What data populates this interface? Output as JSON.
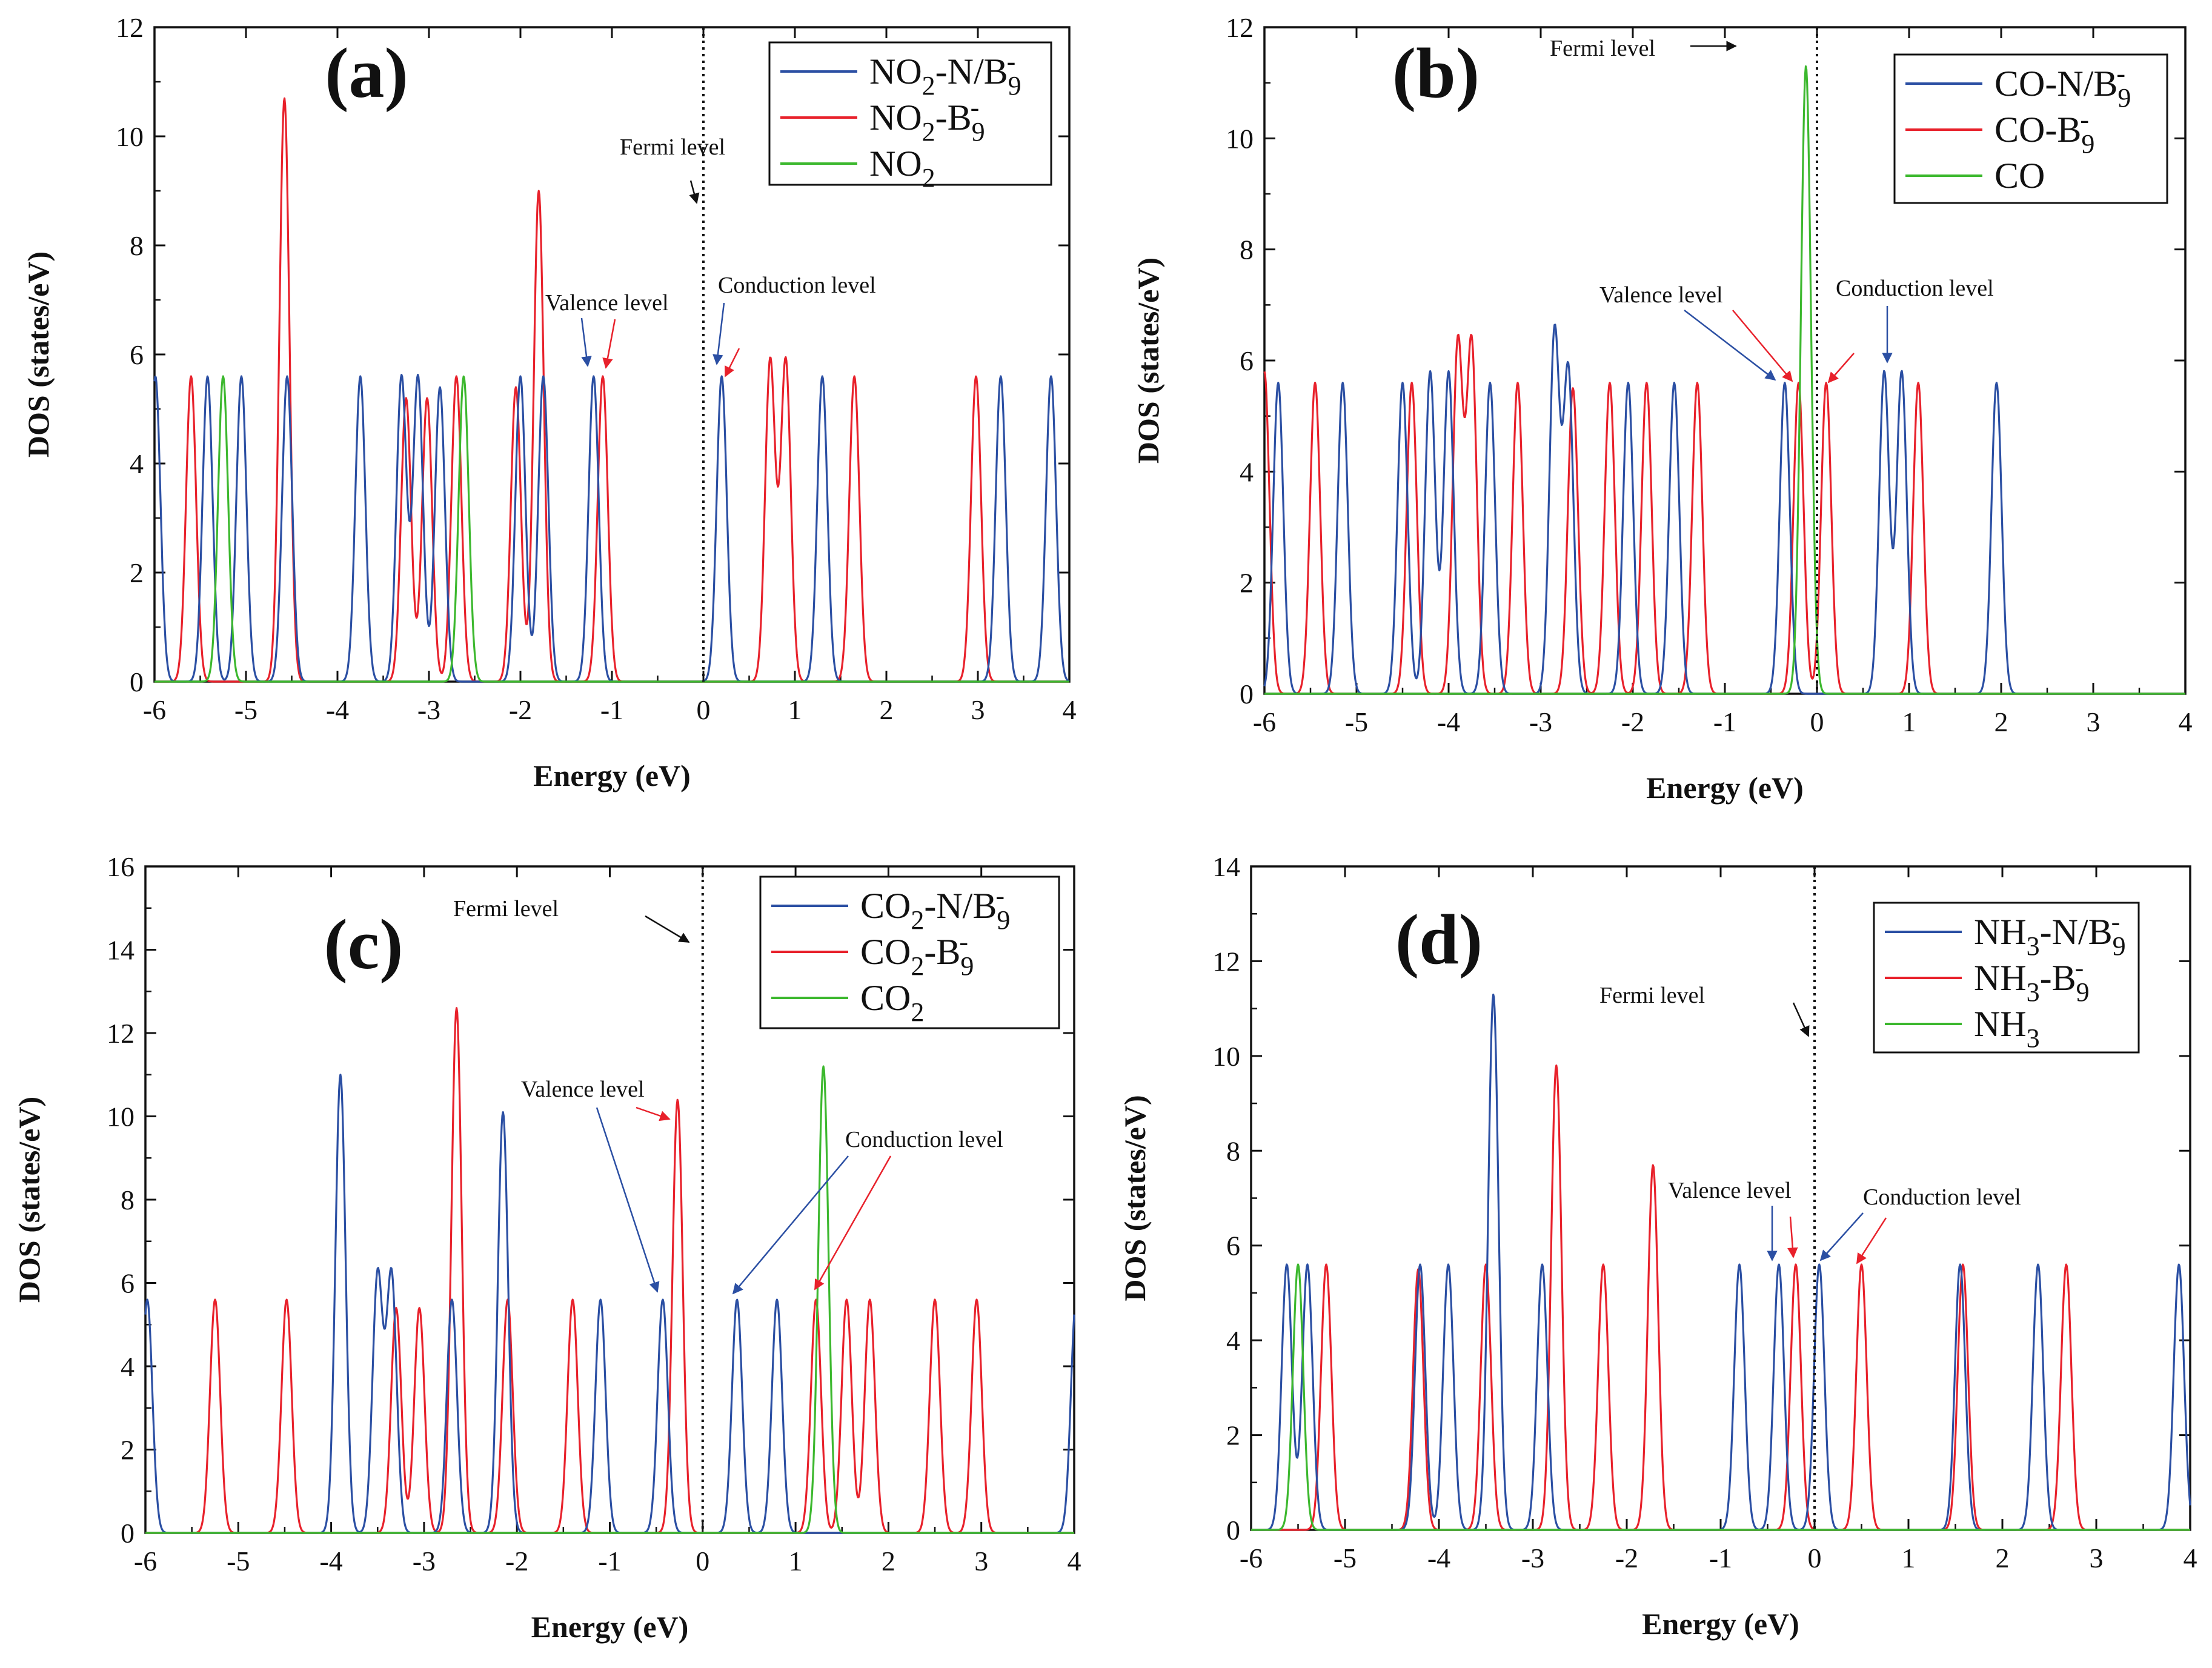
{
  "figure": {
    "panels": [
      "(a)",
      "(b)",
      "(c)",
      "(d)"
    ]
  },
  "chart_data": [
    {
      "type": "line",
      "panel_label": "(a)",
      "xlabel": "Energy (eV)",
      "ylabel": "DOS (states/eV)",
      "xlim": [
        -6,
        4
      ],
      "ylim": [
        0,
        12
      ],
      "xticks": [
        -6,
        -5,
        -4,
        -3,
        -2,
        -1,
        0,
        1,
        2,
        3,
        4
      ],
      "yticks": [
        0,
        2,
        4,
        6,
        8,
        10,
        12
      ],
      "xtick_labels": [
        "-6",
        "-5",
        "-4",
        "-3",
        "-2",
        "-1",
        "0",
        "1",
        "2",
        "3",
        "4"
      ],
      "ytick_labels": [
        "0",
        "2",
        "4",
        "6",
        "8",
        "10",
        "12"
      ],
      "sigma": 0.055,
      "fermi_level": 0,
      "legend": {
        "position": "top-right"
      },
      "series": [
        {
          "name": "NO₂-N/B₉⁻",
          "label_parts": [
            "NO",
            "2",
            "-N/B",
            "9",
            "-"
          ],
          "color": "#2b4fa3",
          "peaks": [
            [
              -5.99,
              5.6
            ],
            [
              -5.42,
              5.6
            ],
            [
              -5.05,
              5.6
            ],
            [
              -4.55,
              5.6
            ],
            [
              -3.75,
              5.6
            ],
            [
              -3.3,
              5.6
            ],
            [
              -3.12,
              5.6
            ],
            [
              -2.88,
              5.4
            ],
            [
              -2.0,
              5.6
            ],
            [
              -1.75,
              5.6
            ],
            [
              -1.2,
              5.6
            ],
            [
              0.2,
              5.6
            ],
            [
              1.3,
              5.6
            ],
            [
              3.25,
              5.6
            ],
            [
              3.8,
              5.6
            ]
          ]
        },
        {
          "name": "NO₂-B₉⁻",
          "label_parts": [
            "NO",
            "2",
            "-B",
            "9",
            "-"
          ],
          "color": "#e8212b",
          "peaks": [
            [
              -5.6,
              5.6
            ],
            [
              -4.58,
              10.7
            ],
            [
              -3.25,
              5.2
            ],
            [
              -3.02,
              5.2
            ],
            [
              -2.7,
              5.6
            ],
            [
              -2.05,
              5.4
            ],
            [
              -1.8,
              9.0
            ],
            [
              -1.1,
              5.6
            ],
            [
              0.73,
              5.9
            ],
            [
              0.9,
              5.9
            ],
            [
              1.65,
              5.6
            ],
            [
              2.98,
              5.6
            ]
          ]
        },
        {
          "name": "NO₂",
          "label_parts": [
            "NO",
            "2",
            "",
            "",
            ""
          ],
          "color": "#3cb82e",
          "peaks": [
            [
              -5.25,
              5.6
            ],
            [
              -2.62,
              5.6
            ]
          ]
        }
      ],
      "annotations": {
        "fermi": "Fermi level",
        "valence": "Valence level",
        "conduction": "Conduction level"
      }
    },
    {
      "type": "line",
      "panel_label": "(b)",
      "xlabel": "Energy (eV)",
      "ylabel": "DOS (states/eV)",
      "xlim": [
        -6,
        4
      ],
      "ylim": [
        0,
        12
      ],
      "xticks": [
        -6,
        -5,
        -4,
        -3,
        -2,
        -1,
        0,
        1,
        2,
        3,
        4
      ],
      "yticks": [
        0,
        2,
        4,
        6,
        8,
        10,
        12
      ],
      "xtick_labels": [
        "-6",
        "-5",
        "-4",
        "-3",
        "-2",
        "-1",
        "0",
        "1",
        "2",
        "3",
        "4"
      ],
      "ytick_labels": [
        "0",
        "2",
        "4",
        "6",
        "8",
        "10",
        "12"
      ],
      "sigma": 0.055,
      "fermi_level": 0,
      "legend": {
        "position": "top-right"
      },
      "series": [
        {
          "name": "CO-N/B₉⁻",
          "label_parts": [
            "CO-N/B",
            "",
            "",
            "9",
            "-"
          ],
          "color": "#2b4fa3",
          "peaks": [
            [
              -5.85,
              5.6
            ],
            [
              -5.15,
              5.6
            ],
            [
              -4.5,
              5.6
            ],
            [
              -4.2,
              5.8
            ],
            [
              -4.0,
              5.8
            ],
            [
              -3.55,
              5.6
            ],
            [
              -2.85,
              6.5
            ],
            [
              -2.7,
              5.8
            ],
            [
              -2.05,
              5.6
            ],
            [
              -1.55,
              5.6
            ],
            [
              -0.35,
              5.6
            ],
            [
              0.73,
              5.8
            ],
            [
              0.92,
              5.8
            ],
            [
              1.95,
              5.6
            ]
          ]
        },
        {
          "name": "CO-B₉⁻",
          "label_parts": [
            "CO-B",
            "",
            "",
            "9",
            "-"
          ],
          "color": "#e8212b",
          "peaks": [
            [
              -6.0,
              5.8
            ],
            [
              -5.45,
              5.6
            ],
            [
              -4.4,
              5.6
            ],
            [
              -3.9,
              6.3
            ],
            [
              -3.75,
              6.3
            ],
            [
              -3.25,
              5.6
            ],
            [
              -2.65,
              5.5
            ],
            [
              -2.25,
              5.6
            ],
            [
              -1.85,
              5.6
            ],
            [
              -1.3,
              5.6
            ],
            [
              -0.2,
              5.6
            ],
            [
              0.1,
              5.6
            ],
            [
              1.1,
              5.6
            ]
          ]
        },
        {
          "name": "CO",
          "label_parts": [
            "CO",
            "",
            "",
            "",
            ""
          ],
          "color": "#3cb82e",
          "peaks": [
            [
              -0.12,
              11.3
            ]
          ]
        }
      ],
      "annotations": {
        "fermi": "Fermi level",
        "valence": "Valence level",
        "conduction": "Conduction level"
      }
    },
    {
      "type": "line",
      "panel_label": "(c)",
      "xlabel": "Energy (eV)",
      "ylabel": "DOS (states/eV)",
      "xlim": [
        -6,
        4
      ],
      "ylim": [
        0,
        16
      ],
      "xticks": [
        -6,
        -5,
        -4,
        -3,
        -2,
        -1,
        0,
        1,
        2,
        3,
        4
      ],
      "yticks": [
        0,
        2,
        4,
        6,
        8,
        10,
        12,
        14,
        16
      ],
      "xtick_labels": [
        "-6",
        "-5",
        "-4",
        "-3",
        "-2",
        "-1",
        "0",
        "1",
        "2",
        "3",
        "4"
      ],
      "ytick_labels": [
        "0",
        "2",
        "4",
        "6",
        "8",
        "10",
        "12",
        "14",
        "16"
      ],
      "sigma": 0.055,
      "fermi_level": 0,
      "legend": {
        "position": "top-right"
      },
      "series": [
        {
          "name": "CO₂-N/B₉⁻",
          "label_parts": [
            "CO",
            "2",
            "-N/B",
            "9",
            "-"
          ],
          "color": "#2b4fa3",
          "peaks": [
            [
              -5.98,
              5.6
            ],
            [
              -3.9,
              11.0
            ],
            [
              -3.5,
              6.2
            ],
            [
              -3.35,
              6.2
            ],
            [
              -2.7,
              5.6
            ],
            [
              -2.15,
              10.1
            ],
            [
              -1.1,
              5.6
            ],
            [
              -0.43,
              5.6
            ],
            [
              0.37,
              5.6
            ],
            [
              0.8,
              5.6
            ],
            [
              4.02,
              5.6
            ]
          ]
        },
        {
          "name": "CO₂-B₉⁻",
          "label_parts": [
            "CO",
            "2",
            "-B",
            "9",
            "-"
          ],
          "color": "#e8212b",
          "peaks": [
            [
              -5.25,
              5.6
            ],
            [
              -4.48,
              5.6
            ],
            [
              -3.3,
              5.4
            ],
            [
              -3.05,
              5.4
            ],
            [
              -2.65,
              12.6
            ],
            [
              -2.1,
              5.6
            ],
            [
              -1.4,
              5.6
            ],
            [
              -0.27,
              10.4
            ],
            [
              1.22,
              5.6
            ],
            [
              1.55,
              5.6
            ],
            [
              1.8,
              5.6
            ],
            [
              2.5,
              5.6
            ],
            [
              2.95,
              5.6
            ]
          ]
        },
        {
          "name": "CO₂",
          "label_parts": [
            "CO",
            "2",
            "",
            "",
            ""
          ],
          "color": "#3cb82e",
          "peaks": [
            [
              1.3,
              11.2
            ]
          ]
        }
      ],
      "annotations": {
        "fermi": "Fermi level",
        "valence": "Valence level",
        "conduction": "Conduction level"
      }
    },
    {
      "type": "line",
      "panel_label": "(d)",
      "xlabel": "Energy (eV)",
      "ylabel": "DOS (states/eV)",
      "xlim": [
        -6,
        4
      ],
      "ylim": [
        0,
        14
      ],
      "xticks": [
        -6,
        -5,
        -4,
        -3,
        -2,
        -1,
        0,
        1,
        2,
        3,
        4
      ],
      "yticks": [
        0,
        2,
        4,
        6,
        8,
        10,
        12,
        14
      ],
      "xtick_labels": [
        "-6",
        "-5",
        "-4",
        "-3",
        "-2",
        "-1",
        "0",
        "1",
        "2",
        "3",
        "4"
      ],
      "ytick_labels": [
        "0",
        "2",
        "4",
        "6",
        "8",
        "10",
        "12",
        "14"
      ],
      "sigma": 0.055,
      "fermi_level": 0,
      "legend": {
        "position": "top-right"
      },
      "series": [
        {
          "name": "NH₃-N/B₉⁻",
          "label_parts": [
            "NH",
            "3",
            "-N/B",
            "9",
            "-"
          ],
          "color": "#2b4fa3",
          "peaks": [
            [
              -5.62,
              5.6
            ],
            [
              -5.4,
              5.6
            ],
            [
              -4.2,
              5.6
            ],
            [
              -3.9,
              5.6
            ],
            [
              -3.42,
              11.3
            ],
            [
              -2.9,
              5.6
            ],
            [
              -0.8,
              5.6
            ],
            [
              -0.38,
              5.6
            ],
            [
              0.05,
              5.6
            ],
            [
              1.55,
              5.6
            ],
            [
              2.38,
              5.6
            ],
            [
              3.88,
              5.6
            ]
          ]
        },
        {
          "name": "NH₃-B₉⁻",
          "label_parts": [
            "NH",
            "3",
            "-B",
            "9",
            "-"
          ],
          "color": "#e8212b",
          "peaks": [
            [
              -5.2,
              5.6
            ],
            [
              -4.22,
              5.5
            ],
            [
              -3.5,
              5.6
            ],
            [
              -2.75,
              9.8
            ],
            [
              -2.25,
              5.6
            ],
            [
              -1.72,
              7.7
            ],
            [
              -0.2,
              5.6
            ],
            [
              0.5,
              5.6
            ],
            [
              1.58,
              5.6
            ],
            [
              2.68,
              5.6
            ]
          ]
        },
        {
          "name": "NH₃",
          "label_parts": [
            "NH",
            "3",
            "",
            "",
            ""
          ],
          "color": "#3cb82e",
          "peaks": [
            [
              -5.5,
              5.6
            ]
          ]
        }
      ],
      "annotations": {
        "fermi": "Fermi level",
        "valence": "Valence level",
        "conduction": "Conduction level"
      }
    }
  ]
}
